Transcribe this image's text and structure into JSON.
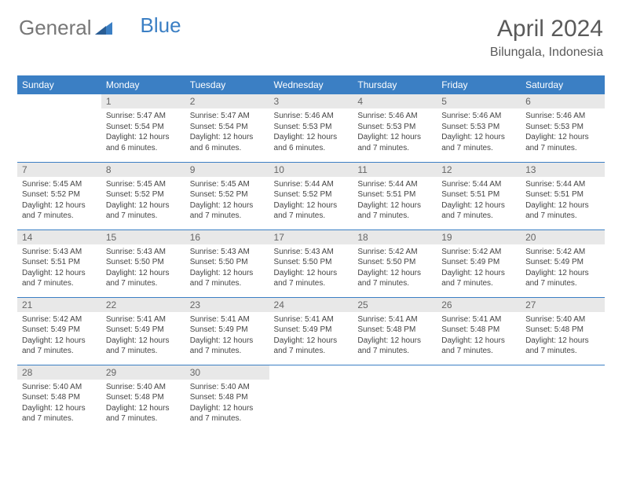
{
  "logo": {
    "part1": "General",
    "part2": "Blue"
  },
  "title": "April 2024",
  "location": "Bilungala, Indonesia",
  "colors": {
    "header_bg": "#3b7fc4",
    "header_text": "#ffffff",
    "daynum_bg": "#e8e8e8",
    "border": "#3b7fc4",
    "text": "#444444"
  },
  "weekdays": [
    "Sunday",
    "Monday",
    "Tuesday",
    "Wednesday",
    "Thursday",
    "Friday",
    "Saturday"
  ],
  "grid": [
    [
      null,
      {
        "n": "1",
        "sr": "5:47 AM",
        "ss": "5:54 PM",
        "dl": "12 hours and 6 minutes."
      },
      {
        "n": "2",
        "sr": "5:47 AM",
        "ss": "5:54 PM",
        "dl": "12 hours and 6 minutes."
      },
      {
        "n": "3",
        "sr": "5:46 AM",
        "ss": "5:53 PM",
        "dl": "12 hours and 6 minutes."
      },
      {
        "n": "4",
        "sr": "5:46 AM",
        "ss": "5:53 PM",
        "dl": "12 hours and 7 minutes."
      },
      {
        "n": "5",
        "sr": "5:46 AM",
        "ss": "5:53 PM",
        "dl": "12 hours and 7 minutes."
      },
      {
        "n": "6",
        "sr": "5:46 AM",
        "ss": "5:53 PM",
        "dl": "12 hours and 7 minutes."
      }
    ],
    [
      {
        "n": "7",
        "sr": "5:45 AM",
        "ss": "5:52 PM",
        "dl": "12 hours and 7 minutes."
      },
      {
        "n": "8",
        "sr": "5:45 AM",
        "ss": "5:52 PM",
        "dl": "12 hours and 7 minutes."
      },
      {
        "n": "9",
        "sr": "5:45 AM",
        "ss": "5:52 PM",
        "dl": "12 hours and 7 minutes."
      },
      {
        "n": "10",
        "sr": "5:44 AM",
        "ss": "5:52 PM",
        "dl": "12 hours and 7 minutes."
      },
      {
        "n": "11",
        "sr": "5:44 AM",
        "ss": "5:51 PM",
        "dl": "12 hours and 7 minutes."
      },
      {
        "n": "12",
        "sr": "5:44 AM",
        "ss": "5:51 PM",
        "dl": "12 hours and 7 minutes."
      },
      {
        "n": "13",
        "sr": "5:44 AM",
        "ss": "5:51 PM",
        "dl": "12 hours and 7 minutes."
      }
    ],
    [
      {
        "n": "14",
        "sr": "5:43 AM",
        "ss": "5:51 PM",
        "dl": "12 hours and 7 minutes."
      },
      {
        "n": "15",
        "sr": "5:43 AM",
        "ss": "5:50 PM",
        "dl": "12 hours and 7 minutes."
      },
      {
        "n": "16",
        "sr": "5:43 AM",
        "ss": "5:50 PM",
        "dl": "12 hours and 7 minutes."
      },
      {
        "n": "17",
        "sr": "5:43 AM",
        "ss": "5:50 PM",
        "dl": "12 hours and 7 minutes."
      },
      {
        "n": "18",
        "sr": "5:42 AM",
        "ss": "5:50 PM",
        "dl": "12 hours and 7 minutes."
      },
      {
        "n": "19",
        "sr": "5:42 AM",
        "ss": "5:49 PM",
        "dl": "12 hours and 7 minutes."
      },
      {
        "n": "20",
        "sr": "5:42 AM",
        "ss": "5:49 PM",
        "dl": "12 hours and 7 minutes."
      }
    ],
    [
      {
        "n": "21",
        "sr": "5:42 AM",
        "ss": "5:49 PM",
        "dl": "12 hours and 7 minutes."
      },
      {
        "n": "22",
        "sr": "5:41 AM",
        "ss": "5:49 PM",
        "dl": "12 hours and 7 minutes."
      },
      {
        "n": "23",
        "sr": "5:41 AM",
        "ss": "5:49 PM",
        "dl": "12 hours and 7 minutes."
      },
      {
        "n": "24",
        "sr": "5:41 AM",
        "ss": "5:49 PM",
        "dl": "12 hours and 7 minutes."
      },
      {
        "n": "25",
        "sr": "5:41 AM",
        "ss": "5:48 PM",
        "dl": "12 hours and 7 minutes."
      },
      {
        "n": "26",
        "sr": "5:41 AM",
        "ss": "5:48 PM",
        "dl": "12 hours and 7 minutes."
      },
      {
        "n": "27",
        "sr": "5:40 AM",
        "ss": "5:48 PM",
        "dl": "12 hours and 7 minutes."
      }
    ],
    [
      {
        "n": "28",
        "sr": "5:40 AM",
        "ss": "5:48 PM",
        "dl": "12 hours and 7 minutes."
      },
      {
        "n": "29",
        "sr": "5:40 AM",
        "ss": "5:48 PM",
        "dl": "12 hours and 7 minutes."
      },
      {
        "n": "30",
        "sr": "5:40 AM",
        "ss": "5:48 PM",
        "dl": "12 hours and 7 minutes."
      },
      null,
      null,
      null,
      null
    ]
  ],
  "labels": {
    "sunrise": "Sunrise:",
    "sunset": "Sunset:",
    "daylight": "Daylight:"
  }
}
